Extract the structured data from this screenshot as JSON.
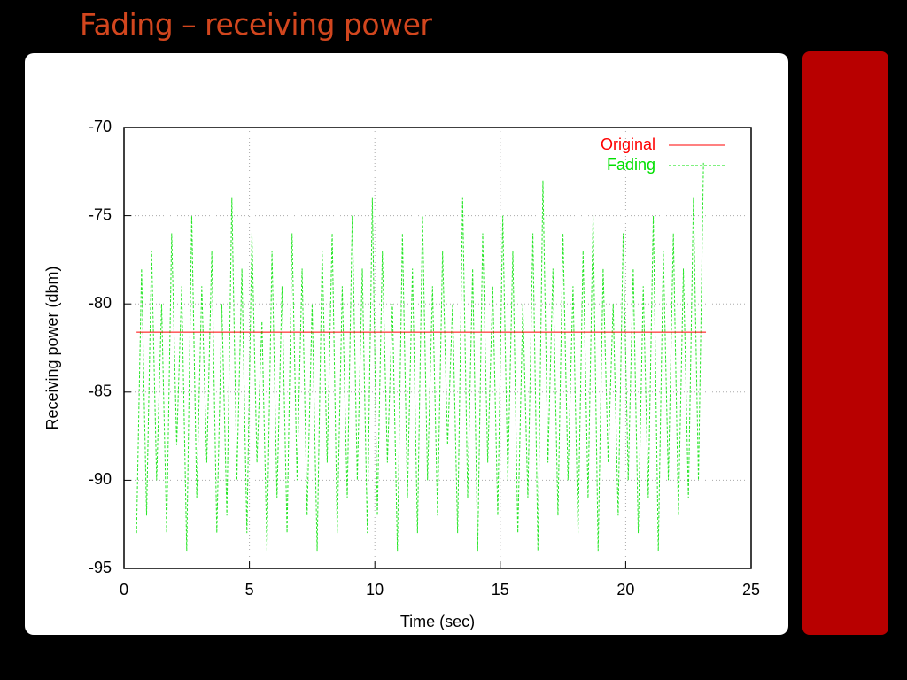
{
  "slide": {
    "title": "Fading – receiving power"
  },
  "chart_data": {
    "type": "line",
    "xlabel": "Time (sec)",
    "ylabel": "Receiving power (dbm)",
    "xlim": [
      0,
      25
    ],
    "xticks": [
      0,
      5,
      10,
      15,
      20,
      25
    ],
    "ylim": [
      -95,
      -70
    ],
    "yticks": [
      -95,
      -90,
      -85,
      -80,
      -75,
      -70
    ],
    "grid": true,
    "legend": "upper right",
    "series": [
      {
        "name": "Original",
        "color": "#ff0000",
        "dashed": false,
        "x": [
          0.5,
          23.2
        ],
        "values": [
          -81.6,
          -81.6
        ]
      },
      {
        "name": "Fading",
        "color": "#00e000",
        "dashed": true,
        "x": [
          0.5,
          0.7,
          0.9,
          1.1,
          1.3,
          1.5,
          1.7,
          1.9,
          2.1,
          2.3,
          2.5,
          2.7,
          2.9,
          3.1,
          3.3,
          3.5,
          3.7,
          3.9,
          4.1,
          4.3,
          4.5,
          4.7,
          4.9,
          5.1,
          5.3,
          5.5,
          5.7,
          5.9,
          6.1,
          6.3,
          6.5,
          6.7,
          6.9,
          7.1,
          7.3,
          7.5,
          7.7,
          7.9,
          8.1,
          8.3,
          8.5,
          8.7,
          8.9,
          9.1,
          9.3,
          9.5,
          9.7,
          9.9,
          10.1,
          10.3,
          10.5,
          10.7,
          10.9,
          11.1,
          11.3,
          11.5,
          11.7,
          11.9,
          12.1,
          12.3,
          12.5,
          12.7,
          12.9,
          13.1,
          13.3,
          13.5,
          13.7,
          13.9,
          14.1,
          14.3,
          14.5,
          14.7,
          14.9,
          15.1,
          15.3,
          15.5,
          15.7,
          15.9,
          16.1,
          16.3,
          16.5,
          16.7,
          16.9,
          17.1,
          17.3,
          17.5,
          17.7,
          17.9,
          18.1,
          18.3,
          18.5,
          18.7,
          18.9,
          19.1,
          19.3,
          19.5,
          19.7,
          19.9,
          20.1,
          20.3,
          20.5,
          20.7,
          20.9,
          21.1,
          21.3,
          21.5,
          21.7,
          21.9,
          22.1,
          22.3,
          22.5,
          22.7,
          22.9,
          23.1
        ],
        "values": [
          -93,
          -78,
          -92,
          -77,
          -90,
          -80,
          -93,
          -76,
          -88,
          -79,
          -94,
          -75,
          -91,
          -79,
          -89,
          -77,
          -93,
          -80,
          -92,
          -74,
          -90,
          -78,
          -93,
          -76,
          -89,
          -81,
          -94,
          -77,
          -91,
          -79,
          -93,
          -76,
          -90,
          -78,
          -92,
          -80,
          -94,
          -77,
          -89,
          -76,
          -93,
          -79,
          -91,
          -75,
          -90,
          -78,
          -93,
          -74,
          -92,
          -77,
          -89,
          -80,
          -94,
          -76,
          -91,
          -78,
          -93,
          -75,
          -90,
          -79,
          -92,
          -77,
          -88,
          -80,
          -93,
          -74,
          -91,
          -78,
          -94,
          -76,
          -89,
          -79,
          -92,
          -75,
          -90,
          -77,
          -93,
          -80,
          -91,
          -76,
          -94,
          -73,
          -89,
          -78,
          -92,
          -76,
          -90,
          -79,
          -93,
          -77,
          -91,
          -75,
          -94,
          -78,
          -89,
          -80,
          -92,
          -76,
          -90,
          -78,
          -93,
          -79,
          -91,
          -75,
          -94,
          -77,
          -90,
          -76,
          -92,
          -78,
          -91,
          -74,
          -90,
          -72
        ]
      }
    ]
  }
}
